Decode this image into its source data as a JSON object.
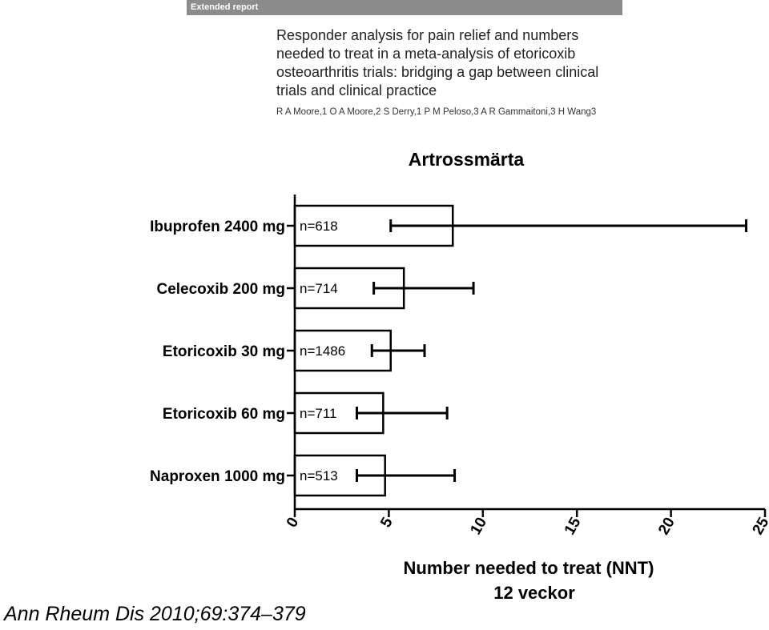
{
  "header": {
    "banner": "Extended report",
    "title": "Responder analysis for pain relief and numbers needed to treat in a meta-analysis of etoricoxib osteoarthritis trials: bridging a gap between clinical trials and clinical practice",
    "authors": "R A Moore,1 O A Moore,2 S Derry,1 P M Peloso,3 A R Gammaitoni,3 H Wang3"
  },
  "citation": "Ann Rheum Dis 2010;69:374–379",
  "chart_data": {
    "type": "bar",
    "orientation": "horizontal",
    "title": "Artrossmärta",
    "xlabel": "Number needed to treat (NNT)",
    "subtitle": "12 veckor",
    "xlim": [
      0,
      25
    ],
    "xticks": [
      "0",
      "5",
      "10",
      "15",
      "20",
      "25"
    ],
    "grid": false,
    "bars": [
      {
        "label": "Ibuprofen 2400 mg",
        "n": "n=618",
        "value": 8.4,
        "ci": [
          5.1,
          24.0
        ]
      },
      {
        "label": "Celecoxib 200 mg",
        "n": "n=714",
        "value": 5.8,
        "ci": [
          4.2,
          9.5
        ]
      },
      {
        "label": "Etoricoxib 30 mg",
        "n": "n=1486",
        "value": 5.1,
        "ci": [
          4.1,
          6.9
        ]
      },
      {
        "label": "Etoricoxib 60 mg",
        "n": "n=711",
        "value": 4.7,
        "ci": [
          3.3,
          8.1
        ]
      },
      {
        "label": "Naproxen 1000 mg",
        "n": "n=513",
        "value": 4.8,
        "ci": [
          3.3,
          8.5
        ]
      }
    ]
  }
}
